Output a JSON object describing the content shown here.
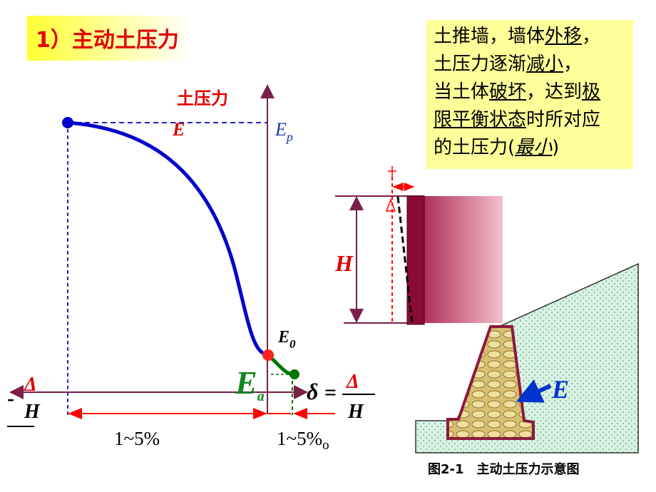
{
  "title": "1）主动土压力",
  "graph": {
    "y_axis_label": "土压力",
    "e_label": "E",
    "ep": {
      "main": "E",
      "sub": "p"
    },
    "e0": {
      "main": "E",
      "sub": "0"
    },
    "ea": {
      "main": "E",
      "sub": "a"
    },
    "left_label": {
      "sign": "-",
      "numerator": "Δ",
      "denominator": "H"
    },
    "right_label": {
      "symbol": "δ",
      "equals": "=",
      "numerator": "Δ",
      "denominator": "H"
    },
    "left_range": "1~5%",
    "right_range": "1~5%",
    "right_range_sub": "o"
  },
  "wall": {
    "height_label": "H"
  },
  "retaining": {
    "force_label": "E",
    "caption": "图2-1　主动土压力示意图"
  },
  "note": {
    "lines": [
      [
        {
          "text": "土推墙，墙体"
        },
        {
          "text": "外移",
          "underline": true
        },
        {
          "text": "，"
        }
      ],
      [
        {
          "text": "土压力逐渐"
        },
        {
          "text": "减小",
          "underline": true
        },
        {
          "text": "，"
        }
      ],
      [
        {
          "text": "当土体"
        },
        {
          "text": "破坏",
          "underline": true
        },
        {
          "text": "，达到"
        },
        {
          "text": "极",
          "underline": true
        }
      ],
      [
        {
          "text": "限平衡状态",
          "underline": true
        },
        {
          "text": "时所对应"
        }
      ],
      [
        {
          "text": "的土压力("
        },
        {
          "text": "最小",
          "underline": true,
          "italic": true
        },
        {
          "text": ")"
        }
      ]
    ]
  }
}
